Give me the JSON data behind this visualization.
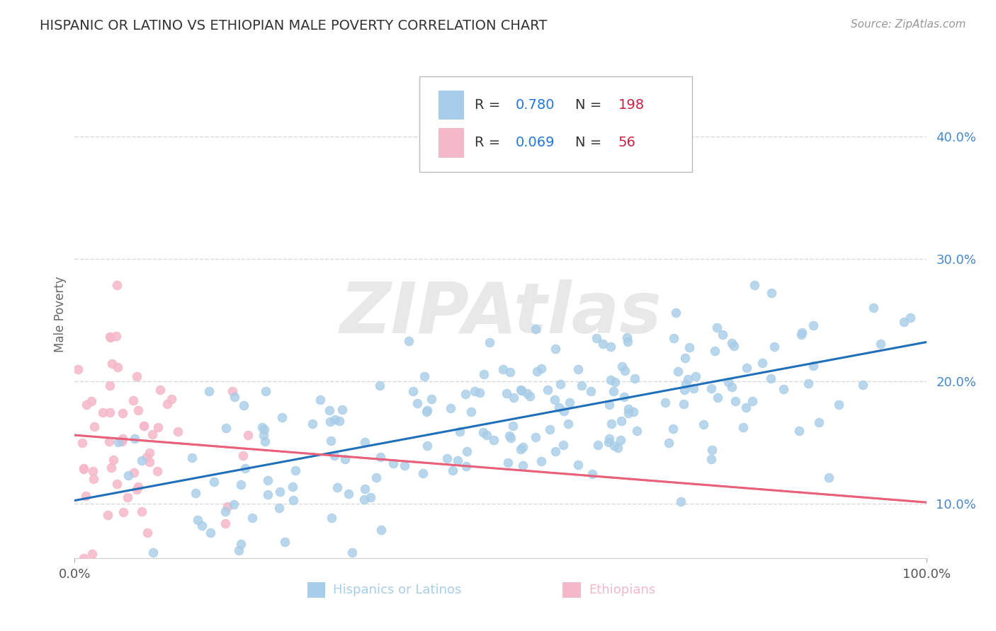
{
  "title": "HISPANIC OR LATINO VS ETHIOPIAN MALE POVERTY CORRELATION CHART",
  "source_text": "Source: ZipAtlas.com",
  "ylabel": "Male Poverty",
  "legend_label1": "Hispanics or Latinos",
  "legend_label2": "Ethiopians",
  "R1": 0.78,
  "N1": 198,
  "R2": 0.069,
  "N2": 56,
  "color_blue_scatter": "#a8cde8",
  "color_pink_scatter": "#f5b8c8",
  "color_blue_line": "#1f6fba",
  "color_pink_line": "#e8607a",
  "color_dashed": "#e8607a",
  "ytick_vals": [
    0.1,
    0.2,
    0.3,
    0.4
  ],
  "ytick_labels": [
    "10.0%",
    "20.0%",
    "30.0%",
    "40.0%"
  ],
  "xlim": [
    0.0,
    1.0
  ],
  "ylim": [
    0.055,
    0.455
  ],
  "bg_color": "#ffffff",
  "grid_color": "#d8d8d8",
  "watermark": "ZIPAtlas",
  "title_fontsize": 14,
  "source_fontsize": 11,
  "axis_label_fontsize": 12,
  "tick_fontsize": 13,
  "legend_fontsize": 14,
  "scatter_size": 80,
  "seed": 12
}
